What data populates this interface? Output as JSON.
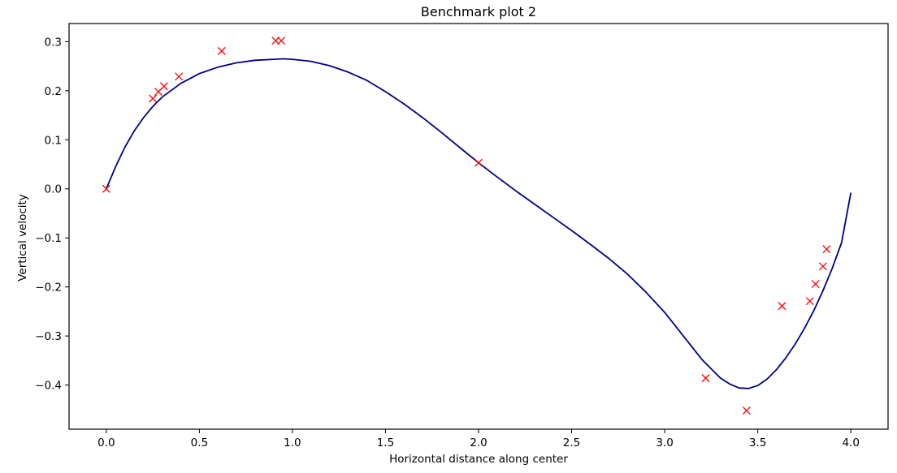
{
  "chart_data": {
    "type": "line",
    "title": "Benchmark plot 2",
    "xlabel": "Horizontal distance along center",
    "ylabel": "Vertical velocity",
    "xlim": [
      -0.2,
      4.2
    ],
    "ylim": [
      -0.49,
      0.337
    ],
    "xticks": [
      0.0,
      0.5,
      1.0,
      1.5,
      2.0,
      2.5,
      3.0,
      3.5,
      4.0
    ],
    "xtick_labels": [
      "0.0",
      "0.5",
      "1.0",
      "1.5",
      "2.0",
      "2.5",
      "3.0",
      "3.5",
      "4.0"
    ],
    "yticks": [
      0.3,
      0.2,
      0.1,
      0.0,
      -0.1,
      -0.2,
      -0.3,
      -0.4
    ],
    "ytick_labels": [
      "0.3",
      "0.2",
      "0.1",
      "0.0",
      "−0.1",
      "−0.2",
      "−0.3",
      "−0.4"
    ],
    "grid": false,
    "series": [
      {
        "kind": "line",
        "color": "#00008b",
        "x": [
          0.0,
          0.05,
          0.1,
          0.15,
          0.2,
          0.25,
          0.3,
          0.4,
          0.5,
          0.6,
          0.7,
          0.8,
          0.9,
          0.95,
          1.0,
          1.1,
          1.2,
          1.3,
          1.4,
          1.5,
          1.6,
          1.7,
          1.8,
          1.9,
          2.0,
          2.1,
          2.2,
          2.3,
          2.4,
          2.5,
          2.6,
          2.7,
          2.8,
          2.9,
          3.0,
          3.1,
          3.2,
          3.3,
          3.35,
          3.4,
          3.45,
          3.5,
          3.55,
          3.6,
          3.65,
          3.7,
          3.75,
          3.8,
          3.85,
          3.9,
          3.95,
          4.0
        ],
        "y": [
          0.0,
          0.045,
          0.085,
          0.118,
          0.145,
          0.168,
          0.187,
          0.215,
          0.235,
          0.248,
          0.257,
          0.262,
          0.264,
          0.265,
          0.264,
          0.26,
          0.251,
          0.238,
          0.221,
          0.198,
          0.173,
          0.145,
          0.115,
          0.084,
          0.053,
          0.024,
          -0.004,
          -0.031,
          -0.058,
          -0.085,
          -0.113,
          -0.142,
          -0.174,
          -0.211,
          -0.252,
          -0.3,
          -0.348,
          -0.386,
          -0.398,
          -0.406,
          -0.407,
          -0.401,
          -0.388,
          -0.369,
          -0.345,
          -0.317,
          -0.285,
          -0.249,
          -0.208,
          -0.162,
          -0.11,
          -0.008
        ]
      },
      {
        "kind": "scatter",
        "marker": "x",
        "color": "#ff0000",
        "x": [
          0.0,
          0.25,
          0.28,
          0.31,
          0.39,
          0.62,
          0.91,
          0.94,
          2.0,
          3.22,
          3.44,
          3.63,
          3.78,
          3.81,
          3.85,
          3.87
        ],
        "y": [
          0.0,
          0.184,
          0.198,
          0.209,
          0.229,
          0.281,
          0.302,
          0.302,
          0.053,
          -0.386,
          -0.452,
          -0.239,
          -0.229,
          -0.194,
          -0.158,
          -0.123
        ]
      }
    ]
  }
}
